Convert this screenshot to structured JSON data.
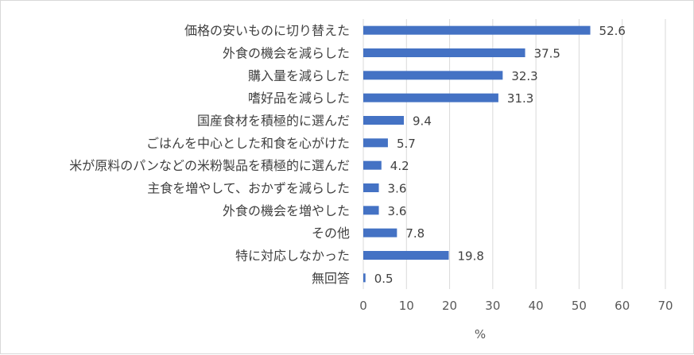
{
  "chart_data": {
    "type": "bar",
    "orientation": "horizontal",
    "categories": [
      "価格の安いものに切り替えた",
      "外食の機会を減らした",
      "購入量を減らした",
      "嗜好品を減らした",
      "国産食材を積極的に選んだ",
      "ごはんを中心とした和食を心がけた",
      "米が原料のパンなどの米粉製品を積極的に選んだ",
      "主食を増やして、おかずを減らした",
      "外食の機会を増やした",
      "その他",
      "特に対応しなかった",
      "無回答"
    ],
    "values": [
      52.6,
      37.5,
      32.3,
      31.3,
      9.4,
      5.7,
      4.2,
      3.6,
      3.6,
      7.8,
      19.8,
      0.5
    ],
    "value_labels": [
      "52.6",
      "37.5",
      "32.3",
      "31.3",
      "9.4",
      "5.7",
      "4.2",
      "3.6",
      "3.6",
      "7.8",
      "19.8",
      "0.5"
    ],
    "xlim": [
      0,
      70
    ],
    "xticks": [
      "0",
      "10",
      "20",
      "30",
      "40",
      "50",
      "60",
      "70"
    ],
    "xlabel": "%",
    "grid": "vertical",
    "legend": "none",
    "bar_color": "#4472c4",
    "grid_color": "#d9d9d9"
  }
}
